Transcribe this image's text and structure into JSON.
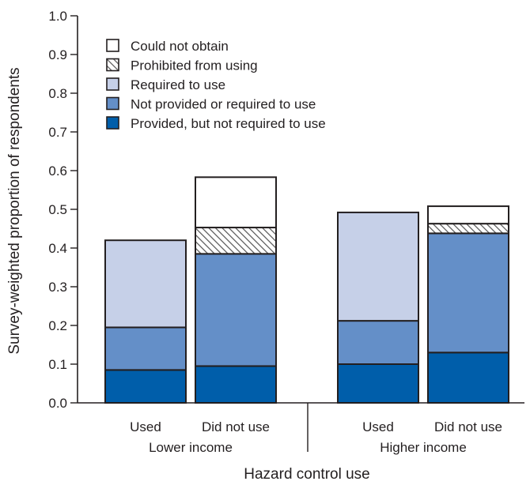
{
  "chart_data": {
    "type": "bar",
    "stacked": true,
    "xlabel": "Hazard control use",
    "ylabel": "Survey-weighted proportion of respondents",
    "ylim": [
      0,
      1.0
    ],
    "yticks": [
      "0.0",
      "0.1",
      "0.2",
      "0.3",
      "0.4",
      "0.5",
      "0.6",
      "0.7",
      "0.8",
      "0.9",
      "1.0"
    ],
    "grid": false,
    "legend_position": "top-left",
    "groups": [
      {
        "label": "Lower income",
        "categories": [
          "Used",
          "Did not use"
        ]
      },
      {
        "label": "Higher income",
        "categories": [
          "Used",
          "Did not use"
        ]
      }
    ],
    "categories": [
      "Used",
      "Did not use",
      "Used",
      "Did not use"
    ],
    "series": [
      {
        "name": "Provided, but not required to use",
        "color": "#005eaa",
        "pattern": "solid",
        "values": [
          0.085,
          0.095,
          0.1,
          0.13
        ]
      },
      {
        "name": "Not provided or required to use",
        "color": "#648fc8",
        "pattern": "solid",
        "values": [
          0.11,
          0.29,
          0.112,
          0.308
        ]
      },
      {
        "name": "Required to use",
        "color": "#c6d0e8",
        "pattern": "solid",
        "values": [
          0.225,
          0.0,
          0.28,
          0.0
        ]
      },
      {
        "name": "Prohibited from using",
        "color": "#ffffff",
        "pattern": "hatch",
        "values": [
          0.0,
          0.068,
          0.0,
          0.025
        ]
      },
      {
        "name": "Could not obtain",
        "color": "#ffffff",
        "pattern": "solid",
        "values": [
          0.0,
          0.13,
          0.0,
          0.045
        ]
      }
    ],
    "legend_order": [
      "Could not obtain",
      "Prohibited from using",
      "Required to use",
      "Not provided or required to use",
      "Provided, but not required to use"
    ]
  }
}
